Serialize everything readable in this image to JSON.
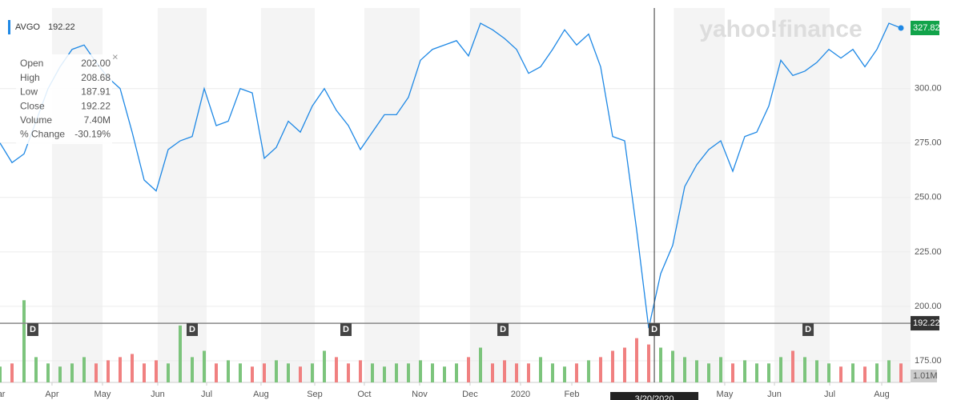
{
  "chart_data": {
    "type": "line",
    "watermark": "yahoo!finance",
    "symbol": "AVGO",
    "symbol_price": "192.22",
    "tooltip": [
      {
        "label": "Open",
        "value": "202.00"
      },
      {
        "label": "High",
        "value": "208.68"
      },
      {
        "label": "Low",
        "value": "187.91"
      },
      {
        "label": "Close",
        "value": "192.22"
      },
      {
        "label": "Volume",
        "value": "7.40M"
      },
      {
        "label": "% Change",
        "value": "-30.19%"
      }
    ],
    "color": "#1e88e5",
    "values": [
      275,
      266,
      270,
      285,
      300,
      310,
      318,
      320,
      312,
      305,
      300,
      280,
      258,
      253,
      272,
      276,
      278,
      300,
      283,
      285,
      300,
      298,
      268,
      273,
      285,
      280,
      292,
      300,
      290,
      283,
      272,
      280,
      288,
      288,
      296,
      313,
      318,
      320,
      322,
      315,
      330,
      327,
      323,
      318,
      307,
      310,
      318,
      327,
      320,
      325,
      310,
      278,
      276,
      235,
      190,
      215,
      228,
      255,
      265,
      272,
      276,
      262,
      278,
      280,
      292,
      313,
      306,
      308,
      312,
      318,
      314,
      318,
      310,
      318,
      330,
      327.82
    ],
    "volume": [
      2.5,
      3,
      13,
      4,
      3,
      2.5,
      3,
      4,
      3,
      3.5,
      4,
      4.5,
      3,
      3.5,
      3,
      9,
      4,
      5,
      3,
      3.5,
      3,
      2.5,
      3,
      3.5,
      3,
      2.5,
      3,
      5,
      4,
      3,
      3.5,
      3,
      2.5,
      3,
      3,
      3.5,
      3,
      2.5,
      3,
      4,
      5.5,
      3,
      3.5,
      3,
      3,
      4,
      3,
      2.5,
      3,
      3.5,
      4,
      5,
      5.5,
      7,
      6,
      5.5,
      5,
      4,
      3.5,
      3,
      4,
      3,
      3.5,
      3,
      3,
      4,
      5,
      4,
      3.5,
      3,
      2.5,
      3,
      2.5,
      3,
      3.5,
      3
    ],
    "volume_tag": {
      "value": 1.01,
      "label": "1.01M"
    },
    "vlim": [
      0,
      60.5
    ],
    "xlim": [
      0,
      75.8
    ],
    "ylim": [
      168,
      337
    ],
    "yticks": [
      {
        "value": 175,
        "label": "175.00"
      },
      {
        "value": 200,
        "label": "200.00"
      },
      {
        "value": 225,
        "label": "225.00"
      },
      {
        "value": 250,
        "label": "250.00"
      },
      {
        "value": 275,
        "label": "275.00"
      },
      {
        "value": 300,
        "label": "300.00"
      }
    ],
    "xticks": [
      {
        "value": -0.2,
        "label": "Mar"
      },
      {
        "value": 4.33,
        "label": "Apr"
      },
      {
        "value": 8.53,
        "label": "May"
      },
      {
        "value": 13.13,
        "label": "Jun"
      },
      {
        "value": 17.2,
        "label": "Jul"
      },
      {
        "value": 21.73,
        "label": "Aug"
      },
      {
        "value": 26.2,
        "label": "Sep"
      },
      {
        "value": 30.33,
        "label": "Oct"
      },
      {
        "value": 34.93,
        "label": "Nov"
      },
      {
        "value": 39.13,
        "label": "Dec"
      },
      {
        "value": 43.33,
        "label": "2020"
      },
      {
        "value": 47.6,
        "label": "Feb"
      },
      {
        "value": 60.33,
        "label": "May"
      },
      {
        "value": 64.47,
        "label": "Jun"
      },
      {
        "value": 69.07,
        "label": "Jul"
      },
      {
        "value": 73.4,
        "label": "Aug"
      }
    ],
    "crosshair": {
      "x": 54.47,
      "x_label": "3/20/2020",
      "y": 192.22,
      "y_label": "192.22"
    },
    "dividend_label": "D",
    "dividends": [
      2.73,
      16,
      28.8,
      41.87,
      54.47,
      67.27
    ]
  }
}
